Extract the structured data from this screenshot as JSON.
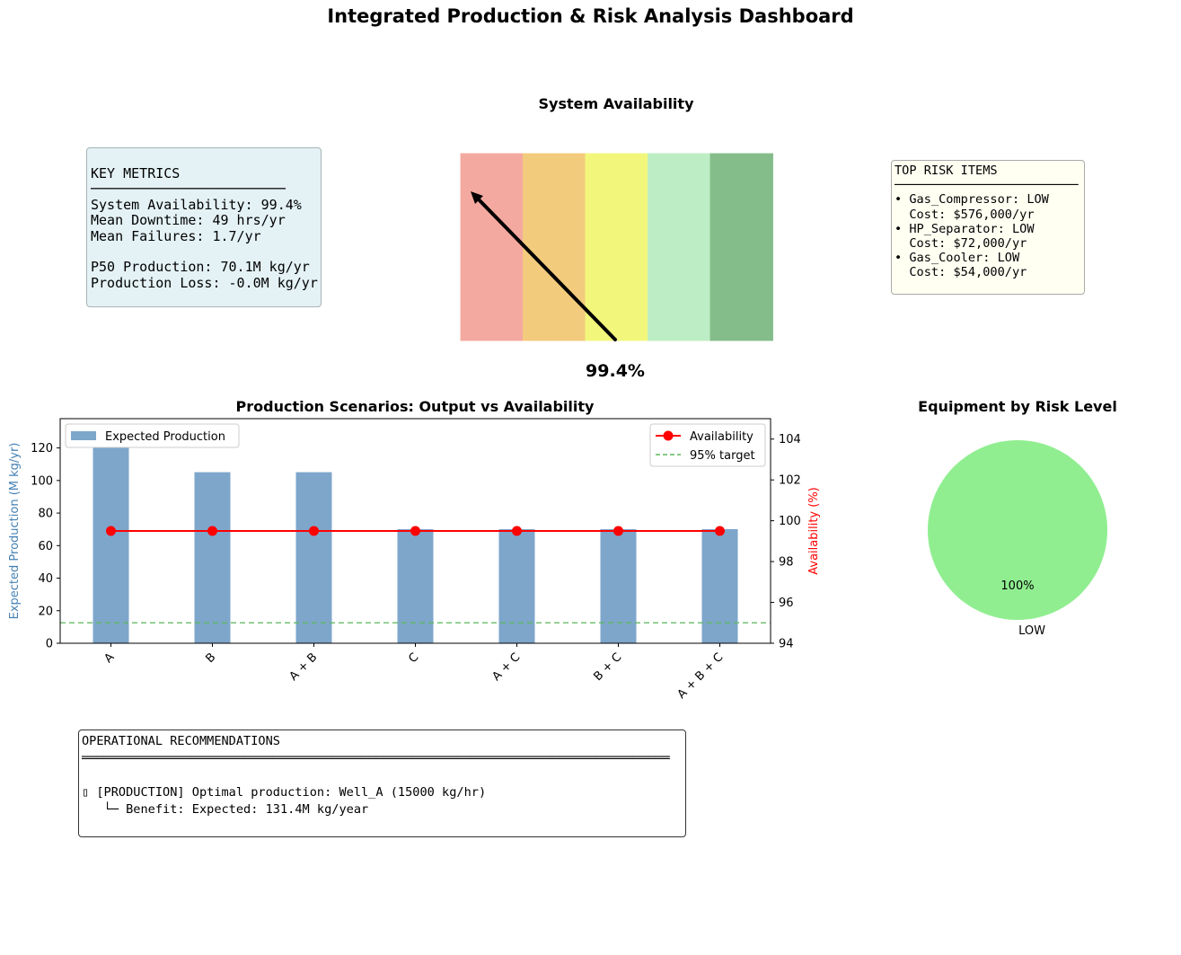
{
  "dashboard": {
    "title": "Integrated Production & Risk Analysis Dashboard"
  },
  "key_metrics": {
    "lines": [
      "KEY METRICS",
      "────────────────────────",
      "System Availability: 99.4%",
      "Mean Downtime: 49 hrs/yr",
      "Mean Failures: 1.7/yr",
      "",
      "P50 Production: 70.1M kg/yr",
      "Production Loss: -0.0M kg/yr"
    ]
  },
  "gauge": {
    "title": "System Availability",
    "value_label": "99.4%",
    "zone_colors": [
      "#f4a9a0",
      "#f3cb7d",
      "#f2f77c",
      "#bdedc4",
      "#84bd89"
    ]
  },
  "top_risk": {
    "lines": [
      "TOP RISK ITEMS",
      "─────────────────────────",
      "• Gas_Compressor: LOW",
      "  Cost: $576,000/yr",
      "• HP_Separator: LOW",
      "  Cost: $72,000/yr",
      "• Gas_Cooler: LOW",
      "  Cost: $54,000/yr"
    ]
  },
  "recommendations": {
    "lines": [
      "OPERATIONAL RECOMMENDATIONS",
      "════════════════════════════════════════════════════════════════════════════════",
      "",
      "▯ [PRODUCTION] Optimal production: Well_A (15000 kg/hr)",
      "   └─ Benefit: Expected: 131.4M kg/year"
    ]
  },
  "chart_data": [
    {
      "type": "bar",
      "title": "Production Scenarios: Output vs Availability",
      "categories": [
        "A",
        "B",
        "A + B",
        "C",
        "A + C",
        "B + C",
        "A + B + C"
      ],
      "ylabel": "Expected Production (M kg/yr)",
      "ylim": [
        0,
        138
      ],
      "yticks": [
        0,
        20,
        40,
        60,
        80,
        100,
        120
      ],
      "series": [
        {
          "name": "Expected Production",
          "values": [
            131.4,
            105.1,
            105.1,
            70.1,
            70.1,
            70.1,
            70.1
          ],
          "color": "#7ea6cb"
        }
      ],
      "y2label": "Availability (%)",
      "y2lim": [
        94,
        105
      ],
      "y2ticks": [
        94,
        96,
        98,
        100,
        102,
        104
      ],
      "series2": [
        {
          "name": "Availability",
          "values": [
            99.5,
            99.5,
            99.5,
            99.5,
            99.5,
            99.5,
            99.5
          ],
          "color": "#ff0000"
        }
      ],
      "reference_line": {
        "name": "95% target",
        "value": 95,
        "color": "#5cb85c"
      },
      "legend_left": "upper-left",
      "legend_right": "upper-right"
    },
    {
      "type": "pie",
      "title": "Equipment by Risk Level",
      "labels": [
        "LOW"
      ],
      "values": [
        100
      ],
      "pct_labels": [
        "100%"
      ],
      "colors": [
        "#90ee90"
      ]
    }
  ]
}
